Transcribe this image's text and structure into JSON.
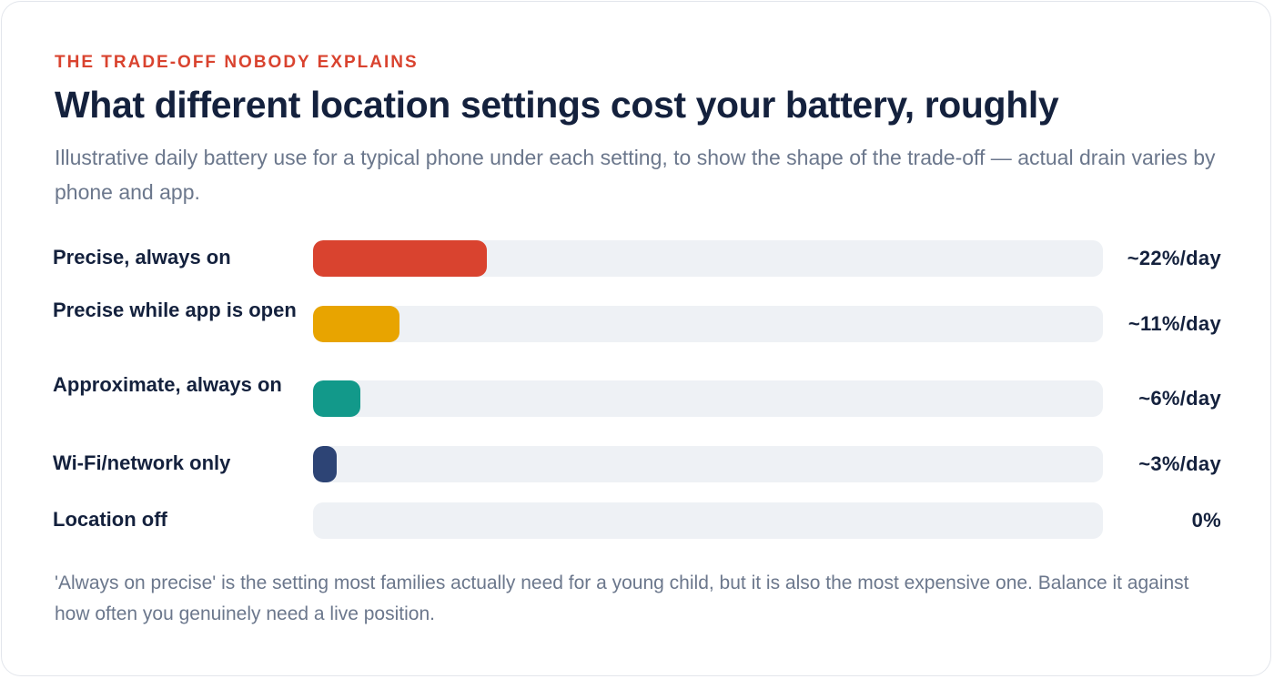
{
  "eyebrow": "THE TRADE-OFF NOBODY EXPLAINS",
  "title": "What different location settings cost your battery, roughly",
  "subtitle": "Illustrative daily battery use for a typical phone under each setting, to show the shape of the trade-off — actual drain varies by phone and app.",
  "footnote": "'Always on precise' is the setting most families actually need for a young child, but it is also the most expensive one. Balance it against how often you genuinely need a live position.",
  "chart_data": {
    "type": "bar",
    "orientation": "horizontal",
    "xlim": [
      0,
      100
    ],
    "categories": [
      "Precise, always on",
      "Precise while app is open",
      "Approximate, always on",
      "Wi-Fi/network only",
      "Location off"
    ],
    "values": [
      22,
      11,
      6,
      3,
      0
    ],
    "value_labels": [
      "~22%/day",
      "~11%/day",
      "~6%/day",
      "~3%/day",
      "0%"
    ],
    "colors": [
      "#d9432f",
      "#e8a400",
      "#12998a",
      "#2d4475",
      "#cfd5de"
    ],
    "track_color": "#eef1f5",
    "grid": false
  }
}
